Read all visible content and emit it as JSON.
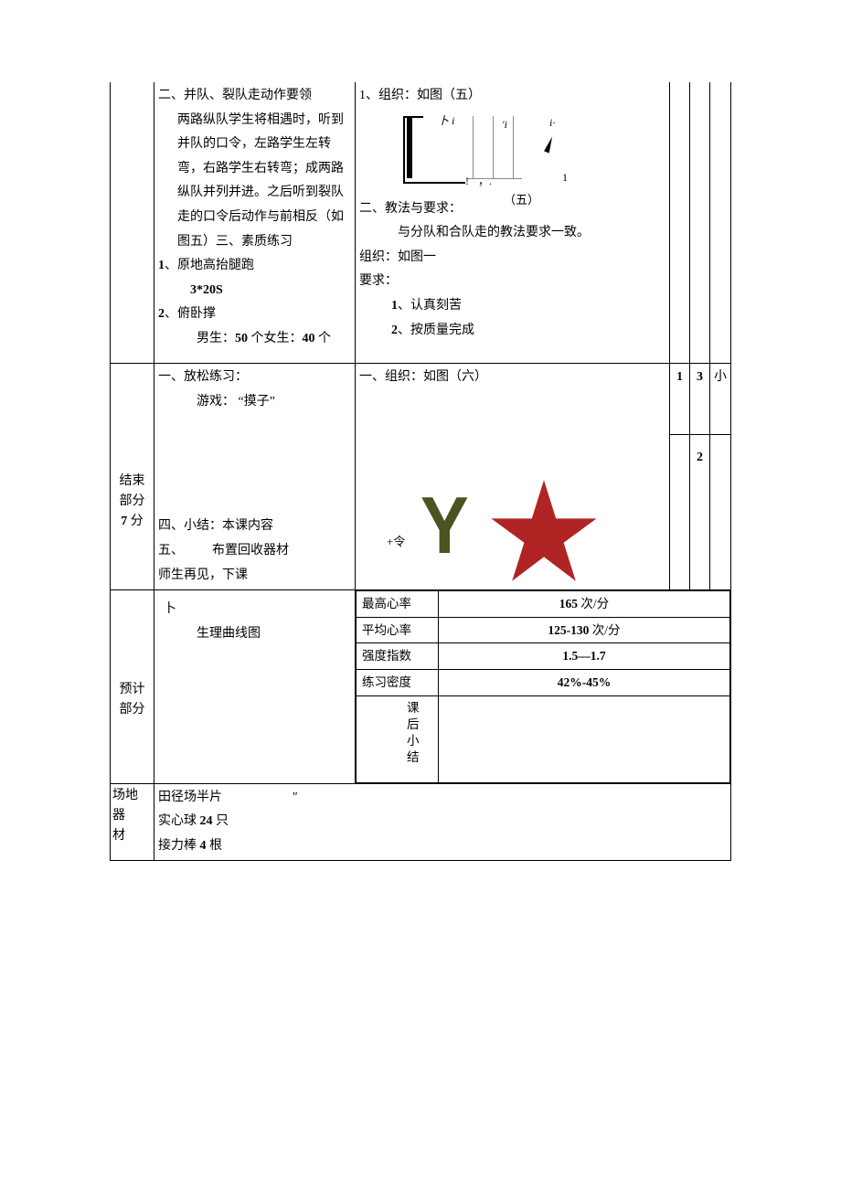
{
  "row1": {
    "content": {
      "heading": "二、并队、裂队走动作要领",
      "para": "两路纵队学生将相遇时，听到并队的口令，左路学生左转弯，右路学生右转弯；成两路纵队并列并进。之后听到裂队走的口令后动作与前相反（如图五）三、素质练习",
      "item1_prefix": "1",
      "item1_text": "、原地高抬腿跑",
      "item1_detail": "3*20S",
      "item2_prefix": "2",
      "item2_text": "、俯卧撑",
      "item2_detail_a": "男生：",
      "item2_detail_a_num": "50",
      "item2_detail_b": " 个女生：",
      "item2_detail_b_num": "40",
      "item2_detail_c": " 个"
    },
    "method": {
      "line1": "1、组织：如图（五）",
      "fig5": {
        "t1": "卜 i",
        "t2": "'i",
        "t3": "i·",
        "t4": "—!",
        "t5": "，.",
        "t6": "1",
        "caption": "（五）"
      },
      "line2": "二、教法与要求：",
      "line3": "与分队和合队走的教法要求一致。",
      "line4": "组织：如图一",
      "line5": "要求：",
      "req1_num": "1",
      "req1_text": "、认真刻苦",
      "req2_num": "2",
      "req2_text": "、按质量完成"
    }
  },
  "row2": {
    "section_label_l1": "结束",
    "section_label_l2": "部分",
    "section_label_l3_a": "7",
    "section_label_l3_b": " 分",
    "content": {
      "line1": "一、放松练习：",
      "line2": "游戏：",
      "line2b": "“摸子”",
      "line3": "四、小结：本课内容",
      "line4a": "五、",
      "line4b": "布置回收器材",
      "line5": "师生再见，下课"
    },
    "method": {
      "line1": "一、组织：如图（六）",
      "fig6_label": "+令",
      "star_color": "#b02424",
      "y_color": "#4b5320"
    },
    "c1": "1",
    "c2": "3",
    "c3": "小",
    "c4": "2"
  },
  "row3": {
    "section_label_l1": "预计",
    "section_label_l2": "部分",
    "curve_sym": "卜",
    "curve_label": "生理曲线图",
    "metrics": {
      "r1_label": "最高心率",
      "r1_val_num": "165",
      "r1_val_unit": " 次/分",
      "r2_label": "平均心率",
      "r2_val_num": "125-130",
      "r2_val_unit": " 次/分",
      "r3_label": "强度指数",
      "r3_val": "1.5—1.7",
      "r4_label": "练习密度",
      "r4_val": "42%-45%"
    },
    "afterclass_label": "课后小结"
  },
  "row4": {
    "section_label_l1": "场地器",
    "section_label_l2": "材",
    "line1a": "田径场半片",
    "line1b": "″",
    "line2a": "实心球 ",
    "line2b": "24",
    "line2c": " 只",
    "line3a": "接力棒 ",
    "line3b": "4",
    "line3c": " 根"
  }
}
